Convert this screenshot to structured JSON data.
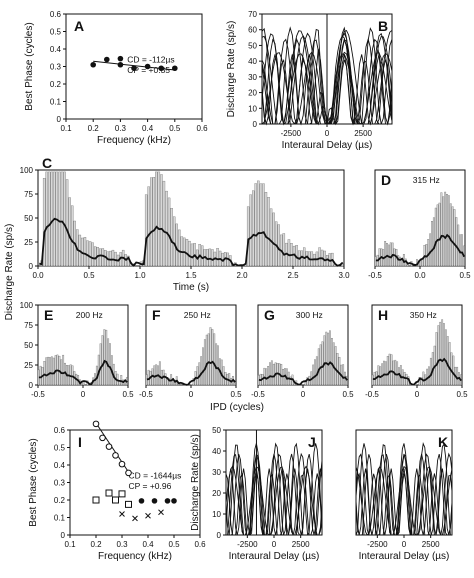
{
  "figure": {
    "ylabel_rows_2_3": "Discharge Rate (sp/s)",
    "xlabel_row3": "IPD (cycles)"
  },
  "chart_data": [
    {
      "id": "A",
      "type": "scatter",
      "panel_label": "A",
      "xlabel": "Frequency (kHz)",
      "ylabel": "Best Phase (cycles)",
      "xlim": [
        0.1,
        0.6
      ],
      "ylim": [
        0,
        0.6
      ],
      "xticks": [
        "0.1",
        "0.2",
        "0.3",
        "0.4",
        "0.5",
        "0.6"
      ],
      "yticks": [
        "0",
        "0.1",
        "0.2",
        "0.3",
        "0.4",
        "0.5",
        "0.6"
      ],
      "annotation": [
        "CD = -112µs",
        "CP = +0.35"
      ],
      "points": [
        [
          0.2,
          0.31
        ],
        [
          0.25,
          0.34
        ],
        [
          0.3,
          0.345
        ],
        [
          0.3,
          0.31
        ],
        [
          0.35,
          0.29
        ],
        [
          0.4,
          0.3
        ],
        [
          0.45,
          0.29
        ],
        [
          0.5,
          0.29
        ]
      ],
      "fit": [
        [
          0.2,
          0.33
        ],
        [
          0.5,
          0.28
        ]
      ]
    },
    {
      "id": "B",
      "type": "line",
      "panel_label": "B",
      "xlabel": "Interaural Delay (µs)",
      "ylabel": "Discharge Rate (sp/s)",
      "xlim": [
        -4500,
        4500
      ],
      "ylim": [
        0,
        70
      ],
      "xticks": [
        "-2500",
        "0",
        "2500"
      ],
      "yticks": [
        "0",
        "10",
        "20",
        "30",
        "40",
        "50",
        "60",
        "70"
      ],
      "vline": 0
    },
    {
      "id": "C",
      "type": "bar",
      "panel_label": "C",
      "xlabel": "Time (s)",
      "xlim": [
        0,
        3
      ],
      "ylim": [
        0,
        100
      ],
      "xticks": [
        "0.0",
        "0.5",
        "1.0",
        "1.5",
        "2.0",
        "2.5",
        "3.0"
      ],
      "yticks": [
        "0",
        "25",
        "50",
        "75",
        "100"
      ]
    },
    {
      "id": "D",
      "type": "bar",
      "panel_label": "D",
      "title": "315 Hz",
      "xlim": [
        -0.5,
        0.5
      ],
      "ylim": [
        0,
        100
      ],
      "xticks": [
        "-0.5",
        "0.0",
        "0.5"
      ]
    },
    {
      "id": "E",
      "type": "bar",
      "panel_label": "E",
      "title": "200 Hz",
      "xlim": [
        -0.5,
        0.5
      ],
      "ylim": [
        0,
        100
      ],
      "xticks": [
        "-0.5",
        "0",
        "0.5"
      ],
      "yticks": [
        "0",
        "25",
        "50",
        "75",
        "100"
      ]
    },
    {
      "id": "F",
      "type": "bar",
      "panel_label": "F",
      "title": "250 Hz",
      "xlim": [
        -0.5,
        0.5
      ],
      "ylim": [
        0,
        100
      ],
      "xticks": [
        "-0.5",
        "0",
        "0.5"
      ]
    },
    {
      "id": "G",
      "type": "bar",
      "panel_label": "G",
      "title": "300 Hz",
      "xlim": [
        -0.5,
        0.5
      ],
      "ylim": [
        0,
        100
      ],
      "xticks": [
        "-0.5",
        "0",
        "0.5"
      ]
    },
    {
      "id": "H",
      "type": "bar",
      "panel_label": "H",
      "title": "350 Hz",
      "xlim": [
        -0.5,
        0.5
      ],
      "ylim": [
        0,
        100
      ],
      "xticks": [
        "-0.5",
        "0",
        "0.5"
      ]
    },
    {
      "id": "I",
      "type": "scatter",
      "panel_label": "I",
      "xlabel": "Frequency (kHz)",
      "ylabel": "Best Phase (cycles)",
      "xlim": [
        0.1,
        0.6
      ],
      "ylim": [
        0,
        0.6
      ],
      "xticks": [
        "0.1",
        "0.2",
        "0.3",
        "0.4",
        "0.5",
        "0.6"
      ],
      "yticks": [
        "0",
        "0.1",
        "0.2",
        "0.3",
        "0.4",
        "0.5",
        "0.6"
      ],
      "annotation": [
        "CD = -1644µs",
        "CP = +0.96"
      ],
      "series": [
        {
          "marker": "circle-open",
          "points": [
            [
              0.2,
              0.635
            ],
            [
              0.225,
              0.555
            ],
            [
              0.25,
              0.505
            ],
            [
              0.275,
              0.455
            ],
            [
              0.3,
              0.405
            ],
            [
              0.325,
              0.355
            ]
          ],
          "fit": [
            [
              0.2,
              0.64
            ],
            [
              0.325,
              0.36
            ]
          ]
        },
        {
          "marker": "square-open",
          "points": [
            [
              0.2,
              0.2
            ],
            [
              0.25,
              0.24
            ],
            [
              0.275,
              0.2
            ],
            [
              0.3,
              0.235
            ],
            [
              0.325,
              0.175
            ]
          ]
        },
        {
          "marker": "x",
          "points": [
            [
              0.3,
              0.12
            ],
            [
              0.35,
              0.095
            ],
            [
              0.4,
              0.11
            ],
            [
              0.45,
              0.13
            ]
          ]
        },
        {
          "marker": "circle-filled",
          "points": [
            [
              0.375,
              0.195
            ],
            [
              0.425,
              0.195
            ],
            [
              0.475,
              0.195
            ],
            [
              0.5,
              0.195
            ]
          ]
        }
      ]
    },
    {
      "id": "J",
      "type": "line",
      "panel_label": "J",
      "xlabel": "Interaural Delay (µs)",
      "ylabel": "Discharge Rate (sp/s)",
      "xlim": [
        -4500,
        4500
      ],
      "ylim": [
        0,
        50
      ],
      "xticks": [
        "-2500",
        "0",
        "2500"
      ],
      "yticks": [
        "0",
        "10",
        "20",
        "30",
        "40",
        "50"
      ],
      "vline": -1644
    },
    {
      "id": "K",
      "type": "line",
      "panel_label": "K",
      "xlabel": "Interaural Delay (µs)",
      "xlim": [
        -4500,
        4500
      ],
      "ylim": [
        0,
        50
      ],
      "xticks": [
        "-2500",
        "0",
        "2500"
      ]
    }
  ]
}
